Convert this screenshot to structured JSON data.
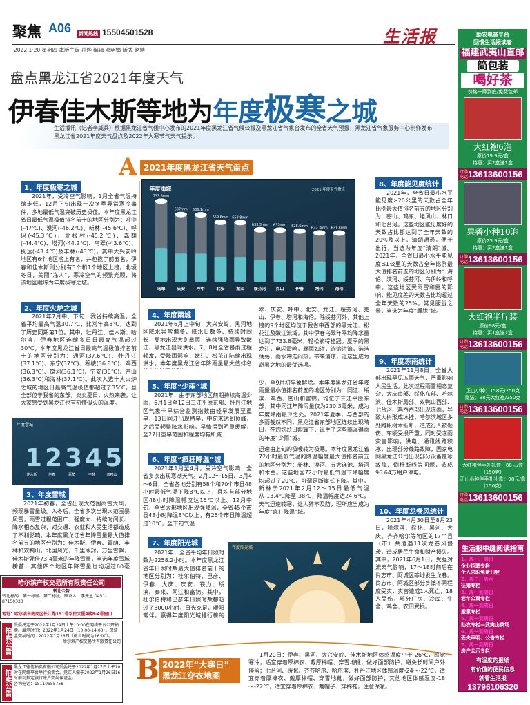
{
  "header": {
    "section": "聚焦",
    "page": "A06",
    "hotline_label": "新闻热线",
    "hotline": "15504501528",
    "logo": "生活报",
    "dateline": "2022·1·20  星期四  本版主编 孙烨  编辑 邓明娟  版式 赵博"
  },
  "headline": {
    "subtitle": "盘点黑龙江省2021年度天气",
    "title_black": "伊春佳木斯等地为",
    "title_blue1": "年度",
    "title_blue_big": "极寒",
    "title_blue2": "之城",
    "intro": "生活报讯（记者李威兵）根据黑龙江省气候中心发布的2021年度黑龙江省气候公报及黑龙江省气象台发布的全省天气预报，黑龙江省气象服务中心制作发布黑龙江省2021年度天气盘点及2022年大寒节气天气提示。"
  },
  "section_a": {
    "letter": "A",
    "label": "2021年度黑龙江省天气盘点"
  },
  "articles": {
    "s1": {
      "h": "1、年度极寒之城",
      "p": "2021年，受冷空气影响，1月全省气温持续走低，12月下旬出现一次冬季异常寒冷事件，多地最低气温突破历史极值。本年度黑龙江省日最低气温极值排名前十的地区分别为：呼中(-47℃)、漠河(-46.2℃)、新林(-45.6℃)、呼玛(-45.3℃)、北极村(-45.2℃)、嘉荫(-44.4℃)、塔河(-44.2℃)、乌翠(-43.6℃)、抚远(-43.4℃)及丰林(-43℃)。其中大兴安岭地区有6个地区榜上有名，并包揽了前五名，伊春和佳木斯则分别有3个和1个地区上榜。北境冬日，美丽“冻人”，寒冷空气的频繁光顾，将该地区雕琢为年度极寒之城。"
    },
    "s2": {
      "h": "2、年度火炉之城",
      "p": "2021年7月中、下旬，我省持续高温，全省平均最高气温30.7℃，比常年高3℃，达到了历史同期第1位。其中，牡丹江、佳木斯、哈尔滨、伊春地区连续多日日最高气温超过30℃。本年度黑龙江省日最高气温极值排名前十的地区分别为：通河(37.6℃)、牡丹江(37.1℃)、东宁(37℃)、穆棱(36.8℃)、鸡西(36.3℃)、饶河(36.1℃)、宁安(36℃)、密山(36.3℃)和海林(37.1℃)。此次入选十大火炉之城的地区日最高气温极值都超过了35℃，且全部位于我省的东部，炎炎夏日，火热来袭，让大家感受到黑龙江也有热情似火的温度。"
    },
    "s3": {
      "h": "3、年度雪城",
      "p": "2021年初春，全省出现大范围雨雪大风，频现暴雪量级。入冬后，全省多次出现大范围暴风雪，雨雪过程范围广、强度大、持续时间长、降水相态复杂，对交通、农业和人民生活都造成了不利影响。本年度黑龙江省年降雪量最大值排名前五的地区分别为：佳木斯、伊春、嘉荫、丰林和双鸭山。北国风光，千里冰封，万里雪飘，佳木斯凭借73.4毫米的年降雪量，当选年度雪城榜首，其他四个地区年降雪量也均超过60毫米。"
    },
    "s4": {
      "h": "4、年度雨城",
      "p1": "2021年6月上中旬，大兴安岭、黑河地区降水异常偏多，降水日数多、持续时间长，局地出现大到暴雨，连续强降雨导致嫩江、黑龙江出现洪水。7、8月全省暴雨过程频发，受降雨影响，嫩江、松花江陆续出现洪水。本年度黑龙江省年降雨量最大值排名前十的地区分别为：乌",
      "p2": "翠、庆安、呼中、北安、龙江、绥芬河、克山、伊春、塔河和海伦。除绥芬河外，其他上榜的9个地区均位于我省中西部的黑龙江、松花江及嫩江流域，其中伊春乌翠年平均降水量达到了733.8毫米，轻松摘得桂冠。夏季的黑龙江，电闪雷鸣，暴雨如注，滚滚洪流，浩浩荡荡，雨水冲走闷热，带来清凉，让这里成为避暑之地的最优选项。"
    },
    "s5": {
      "h": "5、年度“少雨”城",
      "p1": "2021年，由于东部地区前期持续高温少雨，6月1日至12日三江平原东部、牡丹江地区气象干旱综合监测指数由轻旱发展至重旱，13日同江出现特旱，中旬末达到顶峰，之后受频繁降水影响，旱情得到明显缓解，至27日重旱范围和程度均有所减",
      "p2": "少，至9月初旱象解除。本年度黑龙江省年降雨量最小值排名前五的地区分别为：同江、绥滨、鸡西、密山和富锦，均位于三江平原东部，其中同江年降雨量仅为230.3毫米，成为年度降雨最少之处。2021年夏季，与西部的多雨截然不同，黑龙江省东部地区连续出现晴日，在灼灼烈日照耀下，诞生了这些高温得雨的年度“少雨”城。"
    },
    "s6": {
      "h": "6、年度“疯狂降温”城",
      "p1": "2021年1月至4月，受冷空气影响，全省多次出现寒潮天气。2月12～15日、3月4～6日，全省各地分别有58个和70个市县48小时最低气温下降8℃以上，且均有部分地区48小时降温幅度达16℃以上。12月中旬，全省大部地区出现强降温，全省45个市县48小时降温8℃以上，有25个市县降温超过10℃，至下旬气温",
      "p2": "迅速由上旬的极暖转为极寒。本年度黑龙江省72小时最低气温的降温幅度最大值排名前五的地区分别为：新林、漠河、五大连池、塔河和木兰。这些地区72小时最低气温下降幅度均超过了20℃，可谓是断崖式下降。其中，新林于2021年2月12～15日最低气温从-13.4℃降至-38℃，降温幅度达24.6℃，天气迅速转寒，让人猝不及防，理所应当成为年度“疯狂降温”城。"
    },
    "s7": {
      "h": "7、年度阳光城",
      "p": "2021年，全省平均年日照时数为2258.2小时。本年度黑龙江省年日照时数最大值排名前十的地区分别为：杜尔伯特、巴彦、伊春、大庆、庆安、铁力、绥滨、泰来、同江和富锦。其中，杜尔伯特和巴彦年日照时数都超过了3000小时，日光充足，暖阳常伴，赢得年度阳光城排行榜的冠、亚军，其它上榜地区的年日照时数也均超过2400小时。"
    },
    "s8": {
      "h": "8、年度能见度统计",
      "p": "2021年，全省日最小水平能见度≥20公里的天数占全年比例最大值排名前五的地区分别为：密山、鸡东、旭风山、林口和七台河。这些地区能见度好的天数占比都达到了全年天数的20%及以上，清朗通透，便于出行，当选为年度“清朗”城。2021年，全省日最小水平能见度≤1公里的天数占全年比例最大值排名前五的地区分别为：海伦、漠河、绥芬河、乌伊岭和呼中。这些地区受雨雪和雾的影响，能见度差的天数占比均超过全年天数的25%，常见朦胧之景，当选为年度“朦胧”城。"
    },
    "s9": {
      "h": "9、年度冻雨统计",
      "p": "2021年11月8日，全省大部出现罕见冻雨天气，严重影响人民生活。此次过程雨雪相态复杂，大庆南部、绥化东部、哈尔滨、佳木斯局部、双鸭山西部、七台河、鸡西西部出现冻雨，导致大树形成冰挂，哈尔滨城区多处路段树木折断，造成行人被砸伤、车辆受损严重。同时受冻雨灾害影响，供电、通讯线路积冰，出现部分线路故障，国家电网黑龙江公司出现部分设备覆冰故障、倒杆断线等问题，造成96.64万用户停电。"
    },
    "s10": {
      "h": "10、年度龙卷风统计",
      "p": "2021年4月30日至8月23日，哈尔滨、绥化、黑河、大庆、齐齐哈尔等地区的17个县（市）共遭遇11次龙卷风侵袭，造成居民生命和财产损失。其中，2021年6月1日，受强对流天气影响，17～18时前后在尚志市、阿城区等地发生龙卷。尚志市、阿城区部分乡镇不同程度受灾，灾害造成1人死亡，18人受伤，部分厂房、冷库、牛舍、鸡舍、农田受损。"
    }
  },
  "figures": {
    "rain": {
      "title": "年度雨城",
      "badge": "2021 年度天气盘点",
      "cities": [
        "乌翠",
        "庆安",
        "呼中",
        "北安",
        "龙江",
        "绥芬河",
        "克山",
        "伊春",
        "塔河",
        "海伦"
      ],
      "values_mm": [
        733.8,
        687.0,
        686.1,
        659.6,
        658.8,
        633.3,
        632,
        628.6,
        622.3,
        621.8
      ]
    },
    "snow": {
      "title": "年度雪城",
      "ranks": [
        "1",
        "2",
        "3",
        "4",
        "5"
      ],
      "cities": [
        "佳木斯",
        "伊春",
        "嘉荫",
        "丰林",
        "双鸭山"
      ]
    },
    "sun": {
      "title": "年度阳光城"
    }
  },
  "section_b": {
    "letter": "B",
    "label1": "2022年“大寒日”",
    "label2": "黑龙江穿衣地图",
    "p": "1月20日：伊春、黑河、大兴安岭、佳木斯地区体感温度小于-26℃，感觉寒冷，适宜穿着厚棉衣、戴厚棉帽、穿雪地靴，做好面部防护，避免长时间户外停留；七台河、绥化、齐齐哈尔、哈尔滨、牡丹江地区体感温度-24～-22℃，适宜穿着厚棉衣、戴厚棉帽、穿雪地靴，做好面部防护；其他地区体感温度-18～-22℃，适宜穿着厚棉衣、戴帽子、穿棉鞋，注意保暖。"
  },
  "classifieds": {
    "a1_title": "哈尔滨产权交易所有限责任公司",
    "a1_sub": "转让公告",
    "a1_body": "转让标的：第一标段、第二标段。联系人：李先生 0451-87150333",
    "a1_addr": "地址：哈尔滨市南岗区长江路191号华民大厦4楼8-4号窗口",
    "a2_side": "拍卖公告",
    "a2_body": "受委托定于2022年1月29日上午10:00在网络平台公开拍卖。展示时间：2022年1月24日（10:00-14:00）。保证金交纳时间：2022年1月28日（截止时间为16:00）。",
    "a2_sign": "哈尔滨产权交易所有限责任公司",
    "a3_side": "拍卖公告",
    "a3_body": "黑龙江德信拍卖有限公司受委托于2022年1月27日上午10时在网络平台举行拍卖会。竞买人需于2022年1月26日16时前到指定银行账户交纳保证金。",
    "a3_phone": "咨询电话：15110555758"
  },
  "ad": {
    "top1": "助农电商平台",
    "top2": "回馈生活报读者",
    "h1": "福建武夷山直邮",
    "h2": "简包装",
    "h3": "喝好茶",
    "tag": "价格一降到底/免费包邮",
    "phone_label": "订购电话",
    "phone": "13613600156",
    "products": [
      {
        "name": "大红袍6泡",
        "l1": "原价19.9元/盒",
        "l2": "特惠：买2盒送1盒"
      },
      {
        "name": "果香小种10泡",
        "l1": "原价25.9元/盒",
        "l2": "特惠：买2盒送1盒"
      },
      {
        "name": "大红袍半斤装",
        "l1": "原价98元/盒",
        "l2": "特惠：买1盒送1盒"
      },
      {
        "name": "",
        "l1": "正山小种：158元/250克",
        "l2": "赠送：98元大红袍/250克"
      },
      {
        "name": "",
        "l1": "大红袍伴手礼礼盒：88元/盒(150克)",
        "l2": "正山小种伴手礼礼盒：98元/盒(150克)"
      }
    ],
    "guide": {
      "title": "生活报中缝阅读指南",
      "items": [
        {
          "d": "1、周一、周日",
          "t": "企业招聘专栏"
        },
        {
          "d": "",
          "t": "个人求职免费刊登"
        },
        {
          "d": "2、周三、周六",
          "t": "征婚专栏"
        },
        {
          "d": "3、周一到周日",
          "t": "老年公寓专栏"
        },
        {
          "d": "4、周一到周日",
          "t": "搬家专栏"
        },
        {
          "d": "5、周一到周日",
          "t": "助农专栏—武夷山茶场"
        },
        {
          "d": "6、周一到周日",
          "t": "丢失声明、公告专栏"
        },
        {
          "d": "7、周一到周日",
          "t": "房产公示专栏"
        }
      ],
      "s1": "有温度的报纸",
      "s2": "有价值的便民信息",
      "s3": "就看生活报",
      "phone": "13796106320"
    }
  },
  "colors": {
    "accent_blue": "#1b67a8",
    "section_orange": "#d9731a",
    "ad_green": "#1e8e4a",
    "ad_magenta": "#b0156a",
    "logo_red": "#b01c2e"
  }
}
